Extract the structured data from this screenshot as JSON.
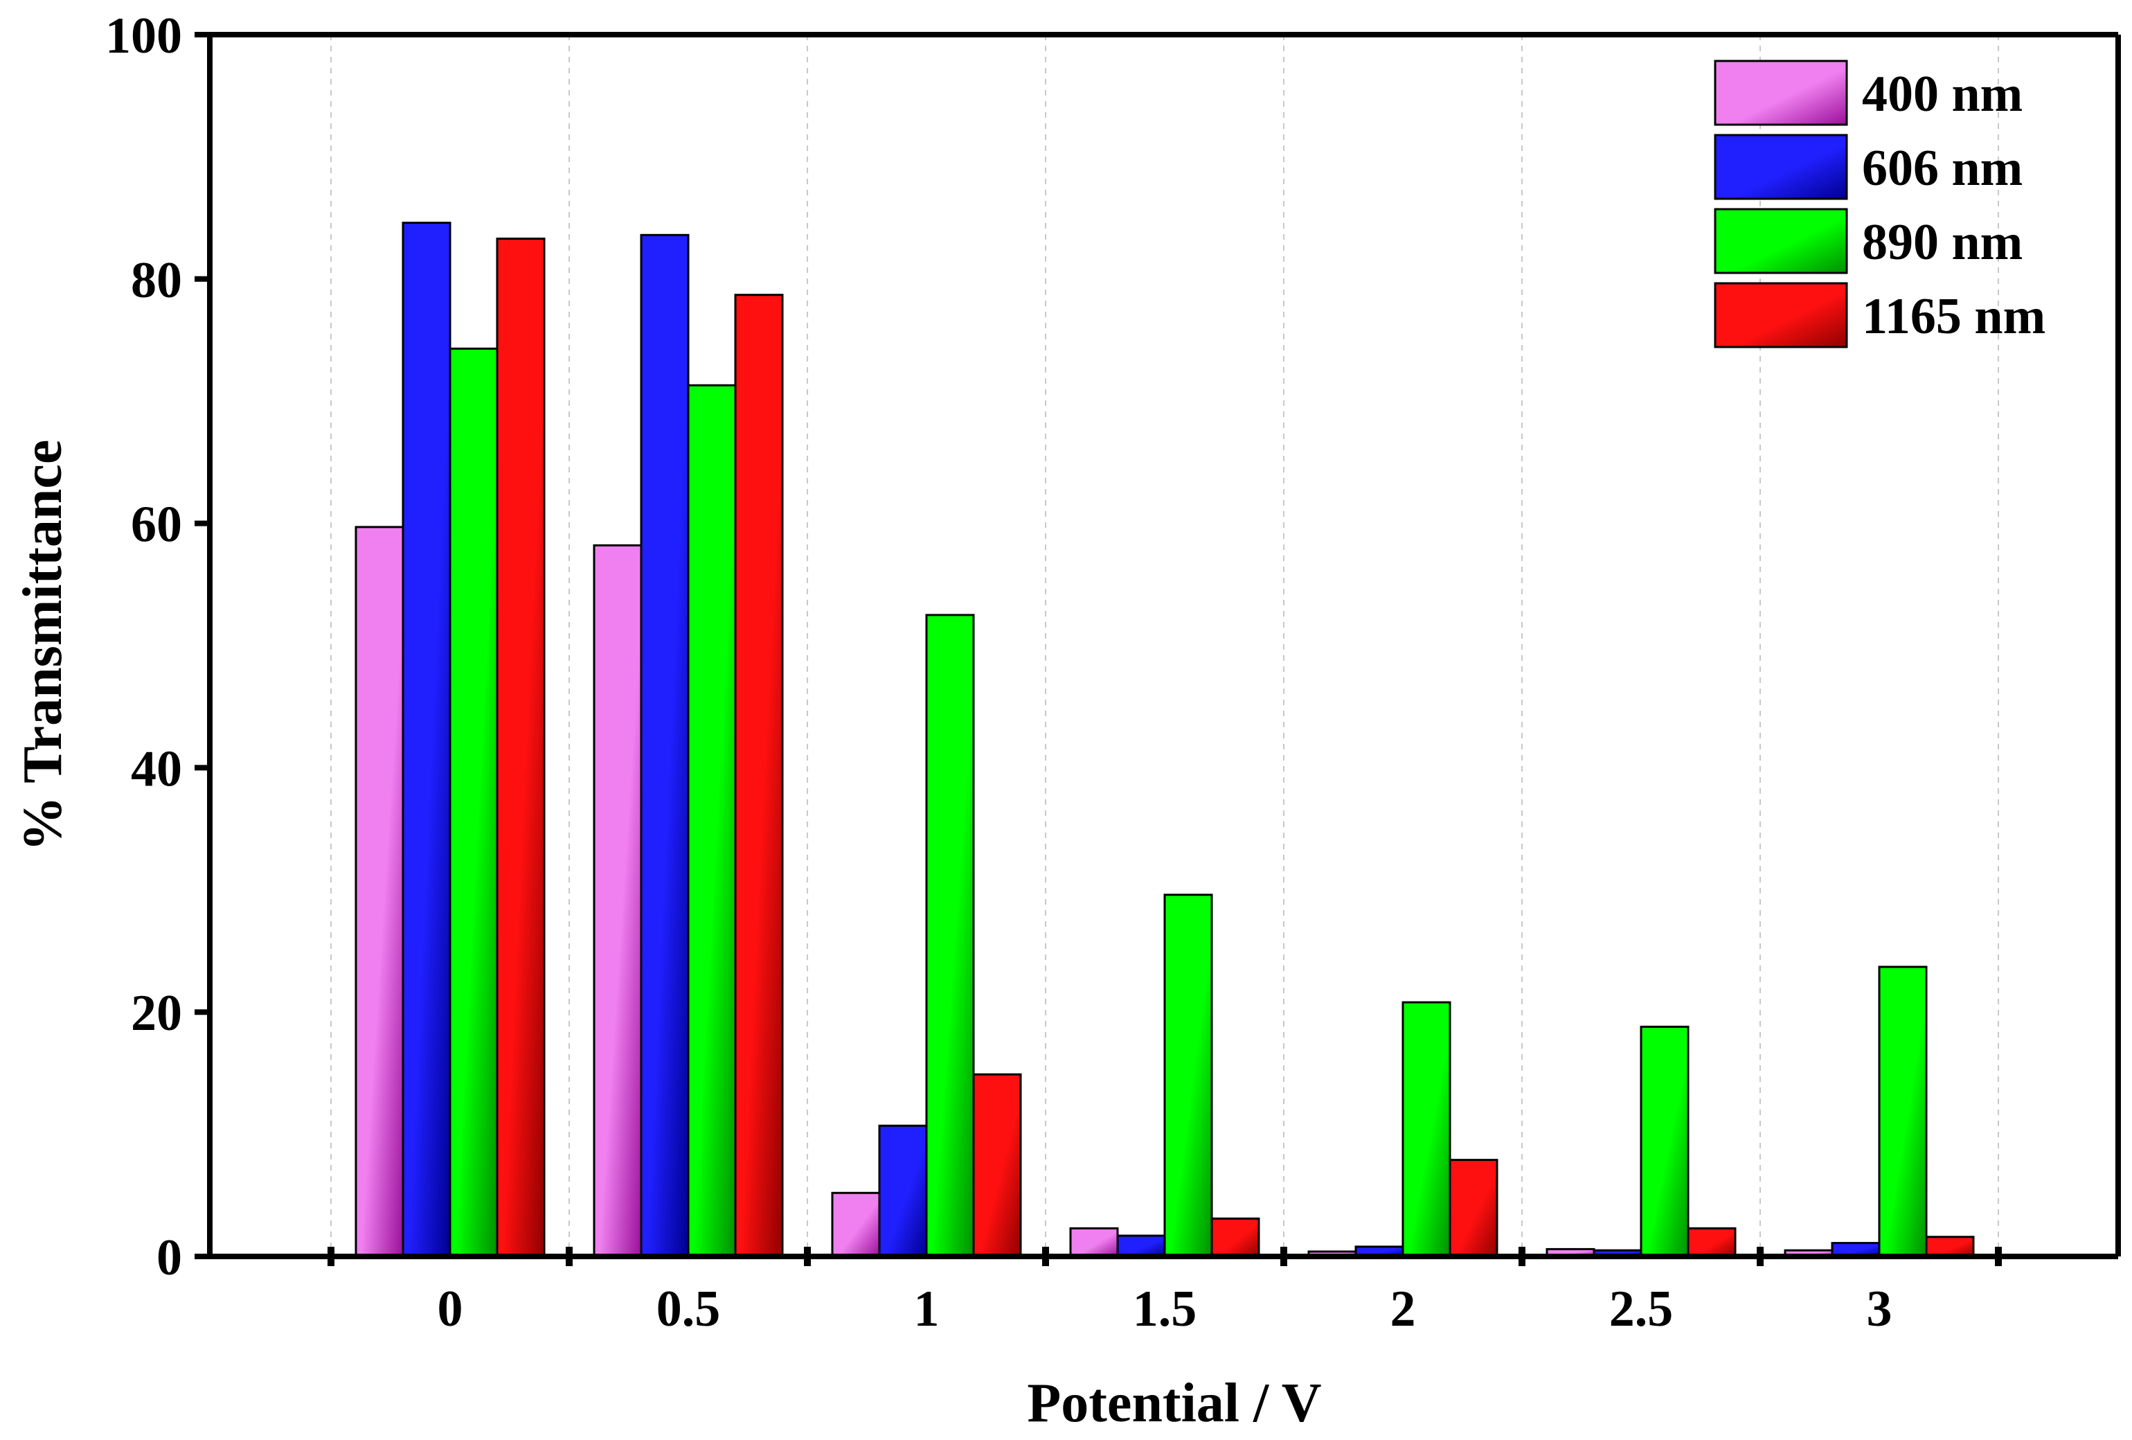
{
  "chart_data": {
    "type": "bar",
    "title": "",
    "xlabel": "Potential / V",
    "ylabel": "% Transmittance",
    "categories": [
      "0",
      "0.5",
      "1",
      "1.5",
      "2",
      "2.5",
      "3"
    ],
    "ylim": [
      0,
      100
    ],
    "yticks": [
      0,
      20,
      40,
      60,
      80,
      100
    ],
    "grid": "vertical dashed",
    "legend_position": "top-right",
    "series": [
      {
        "name": "400 nm",
        "color": "#f080f0",
        "dark": "#9a109a",
        "values": [
          59.7,
          58.2,
          5.2,
          2.3,
          0.4,
          0.6,
          0.5
        ]
      },
      {
        "name": "606 nm",
        "color": "#2020ff",
        "dark": "#000090",
        "values": [
          84.6,
          83.6,
          10.7,
          1.7,
          0.8,
          0.5,
          1.1
        ]
      },
      {
        "name": "890 nm",
        "color": "#00ff00",
        "dark": "#009000",
        "values": [
          74.3,
          71.3,
          52.5,
          29.6,
          20.8,
          18.8,
          23.7
        ]
      },
      {
        "name": "1165 nm",
        "color": "#ff1010",
        "dark": "#900000",
        "values": [
          83.3,
          78.7,
          14.9,
          3.1,
          7.9,
          2.3,
          1.6
        ]
      }
    ]
  }
}
